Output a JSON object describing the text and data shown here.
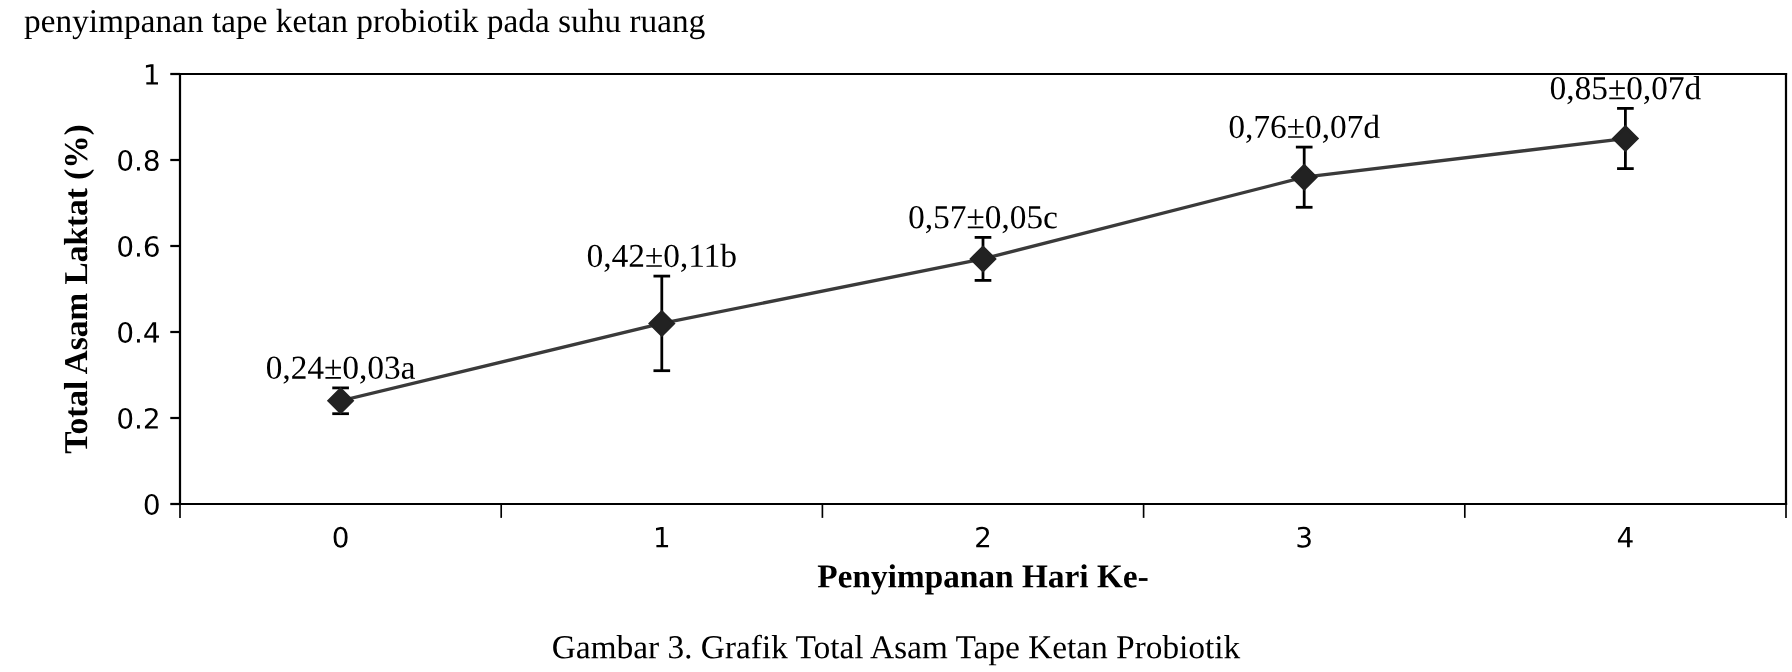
{
  "chart_data": {
    "type": "line",
    "xlabel": "Penyimpanan Hari Ke-",
    "ylabel": "Total Asam Laktat (%)",
    "categories": [
      "0",
      "1",
      "2",
      "3",
      "4"
    ],
    "values": [
      0.24,
      0.42,
      0.57,
      0.76,
      0.85
    ],
    "errors": [
      0.03,
      0.11,
      0.05,
      0.07,
      0.07
    ],
    "value_labels": [
      "0,24±0,03a",
      "0,42±0,11b",
      "0,57±0,05c",
      "0,76±0,07d",
      "0,85±0,07d"
    ],
    "color": "#3a3a3a",
    "marker": "diamond",
    "ylim": [
      0,
      1
    ],
    "yticks": [
      0,
      0.2,
      0.4,
      0.6,
      0.8,
      1
    ],
    "annotations": [
      "penyimpanan tape ketan probiotik pada suhu ruang",
      "Gambar 3. Grafik Total Asam Tape Ketan Probiotik"
    ]
  }
}
